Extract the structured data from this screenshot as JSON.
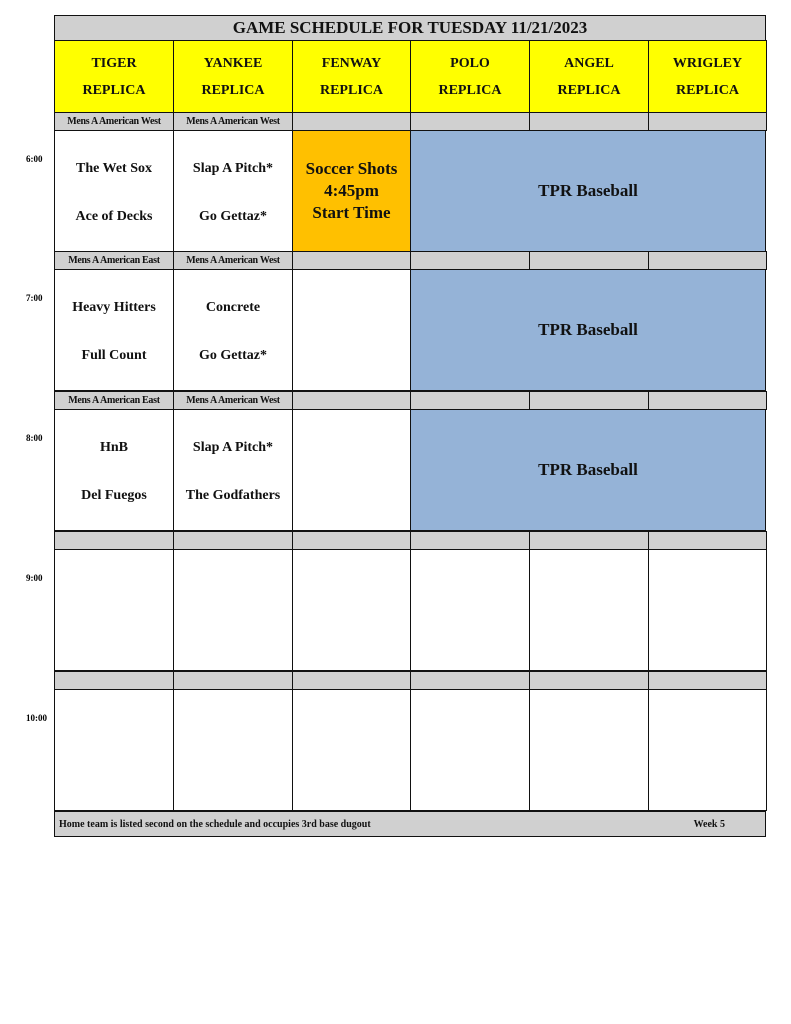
{
  "title": "GAME SCHEDULE FOR TUESDAY 11/21/2023",
  "colors": {
    "header": "#FFFF00",
    "division": "#D0D0D0",
    "soccer": "#FFC000",
    "tpr": "#95B3D7",
    "empty": "#FFFFFF"
  },
  "fields": [
    {
      "name": "TIGER",
      "sub": "REPLICA"
    },
    {
      "name": "YANKEE",
      "sub": "REPLICA"
    },
    {
      "name": "FENWAY",
      "sub": "REPLICA"
    },
    {
      "name": "POLO",
      "sub": "REPLICA"
    },
    {
      "name": "ANGEL",
      "sub": "REPLICA"
    },
    {
      "name": "WRIGLEY",
      "sub": "REPLICA"
    }
  ],
  "slots": [
    {
      "time": "6:00",
      "divisions": [
        "Mens A American West",
        "Mens A American West",
        "",
        "",
        "",
        ""
      ],
      "games": [
        [
          "The Wet Sox",
          "Ace of Decks"
        ],
        [
          "Slap A Pitch*",
          "Go Gettaz*"
        ]
      ],
      "special": {
        "col": 2,
        "lines": [
          "Soccer Shots",
          "4:45pm",
          "Start Time"
        ]
      },
      "merged": {
        "label": "TPR Baseball"
      }
    },
    {
      "time": "7:00",
      "divisions": [
        "Mens A American East",
        "Mens A American West",
        "",
        "",
        "",
        ""
      ],
      "games": [
        [
          "Heavy Hitters",
          "Full Count"
        ],
        [
          "Concrete",
          "Go Gettaz*"
        ]
      ],
      "merged": {
        "label": "TPR Baseball"
      }
    },
    {
      "time": "8:00",
      "divisions": [
        "Mens A American East",
        "Mens A American West",
        "",
        "",
        "",
        ""
      ],
      "games": [
        [
          "HnB",
          "Del Fuegos"
        ],
        [
          "Slap A Pitch*",
          "The Godfathers"
        ]
      ],
      "merged": {
        "label": "TPR Baseball"
      }
    },
    {
      "time": "9:00",
      "divisions": [
        "",
        "",
        "",
        "",
        "",
        ""
      ],
      "games": []
    },
    {
      "time": "10:00",
      "divisions": [
        "",
        "",
        "",
        "",
        "",
        ""
      ],
      "games": []
    }
  ],
  "footer": {
    "note": "Home team is listed second on the schedule and occupies 3rd base dugout",
    "week": "Week 5"
  }
}
